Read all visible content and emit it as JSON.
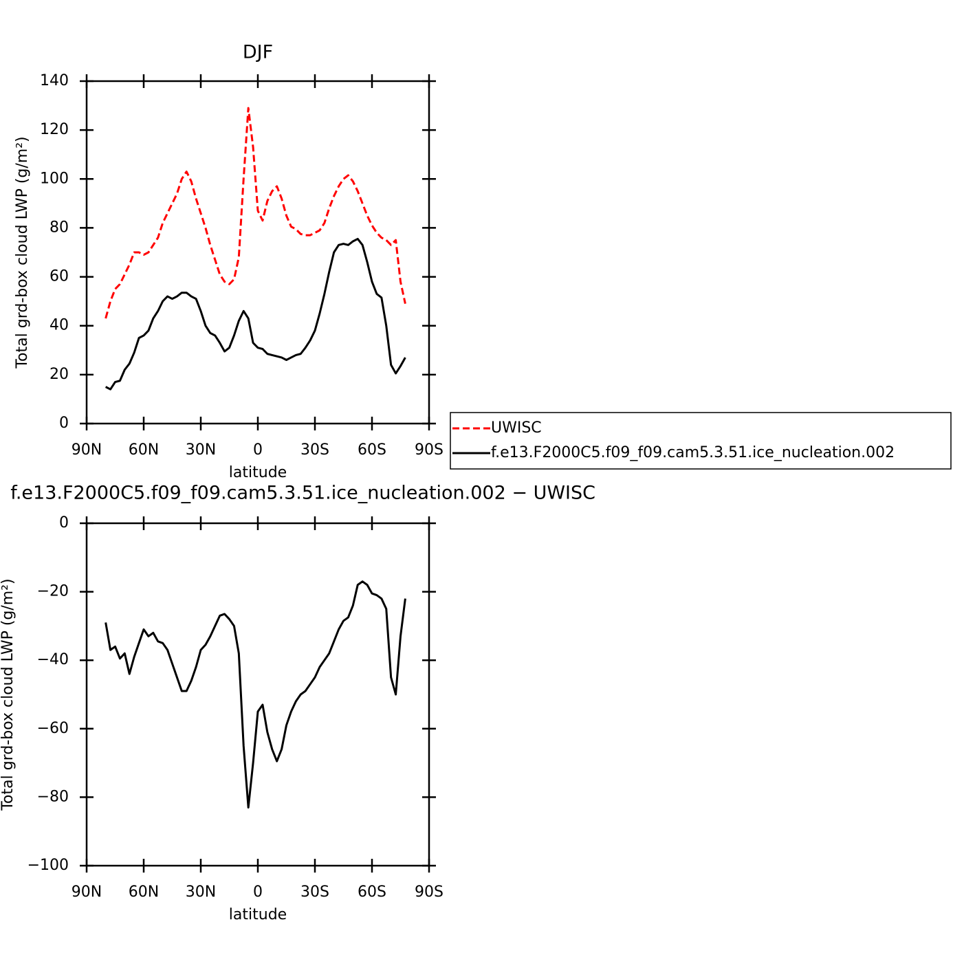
{
  "chart_data": [
    {
      "type": "line",
      "title": "DJF",
      "xlabel": "latitude",
      "ylabel": "Total grd-box cloud LWP (g/m²)",
      "x": [
        80,
        77.5,
        75,
        72.5,
        70,
        67.5,
        65,
        62.5,
        60,
        57.5,
        55,
        52.5,
        50,
        47.5,
        45,
        42.5,
        40,
        37.5,
        35,
        32.5,
        30,
        27.5,
        25,
        22.5,
        20,
        17.5,
        15,
        12.5,
        10,
        7.5,
        5,
        2.5,
        0,
        -2.5,
        -5,
        -7.5,
        -10,
        -12.5,
        -15,
        -17.5,
        -20,
        -22.5,
        -25,
        -27.5,
        -30,
        -32.5,
        -35,
        -37.5,
        -40,
        -42.5,
        -45,
        -47.5,
        -50,
        -52.5,
        -55,
        -57.5,
        -60,
        -62.5,
        -65,
        -67.5,
        -70,
        -72.5,
        -75,
        -77.5
      ],
      "xlim": [
        90,
        -90
      ],
      "xticks": [
        {
          "value": 90,
          "label": "90N"
        },
        {
          "value": 60,
          "label": "60N"
        },
        {
          "value": 30,
          "label": "30N"
        },
        0,
        {
          "value": -30,
          "label": "30S"
        },
        {
          "value": -60,
          "label": "60S"
        },
        {
          "value": -90,
          "label": "90S"
        }
      ],
      "ylim": [
        0,
        140
      ],
      "yticks": [
        0,
        20,
        40,
        60,
        80,
        100,
        120,
        140
      ],
      "legend": "right",
      "series": [
        {
          "name": "UWISC",
          "color": "#ff0000",
          "dash": "dashed",
          "values": [
            43,
            50,
            55,
            57,
            61,
            65,
            70,
            70,
            69,
            70,
            73,
            76,
            82,
            86,
            90,
            94,
            100,
            103,
            99,
            92,
            86,
            80,
            73,
            67,
            61,
            58,
            57,
            59,
            68,
            100,
            129,
            113,
            87,
            83,
            91,
            95,
            97,
            92,
            85,
            80.5,
            79.5,
            77.5,
            77,
            77,
            78,
            79,
            82,
            88,
            93,
            97,
            100,
            101.5,
            99,
            95,
            90,
            85,
            81,
            78,
            76,
            75,
            73,
            75,
            58,
            49
          ]
        },
        {
          "name": "f.e13.F2000C5.f09_f09.cam5.3.51.ice_nucleation.002",
          "color": "#000000",
          "dash": "solid",
          "values": [
            15,
            14,
            17,
            17.5,
            22,
            24.5,
            29,
            35,
            36,
            38,
            43,
            46,
            50,
            52,
            51,
            52,
            53.5,
            53.5,
            52,
            51,
            46,
            40,
            37,
            36,
            33,
            29.5,
            31,
            36,
            42,
            46,
            43,
            33,
            31,
            30.5,
            28.5,
            28,
            27.5,
            27,
            26,
            27,
            28,
            28.5,
            31,
            34,
            38,
            45,
            53,
            62,
            70,
            73,
            73.5,
            73,
            74.5,
            75.5,
            73,
            66,
            58,
            53,
            51.5,
            40,
            24,
            20.5,
            23.5,
            27
          ]
        }
      ]
    },
    {
      "type": "line",
      "title": "f.e13.F2000C5.f09_f09.cam5.3.51.ice_nucleation.002 − UWISC",
      "xlabel": "latitude",
      "ylabel": "Total grd-box cloud LWP (g/m²)",
      "x": [
        80,
        77.5,
        75,
        72.5,
        70,
        67.5,
        65,
        62.5,
        60,
        57.5,
        55,
        52.5,
        50,
        47.5,
        45,
        42.5,
        40,
        37.5,
        35,
        32.5,
        30,
        27.5,
        25,
        22.5,
        20,
        17.5,
        15,
        12.5,
        10,
        7.5,
        5,
        2.5,
        0,
        -2.5,
        -5,
        -7.5,
        -10,
        -12.5,
        -15,
        -17.5,
        -20,
        -22.5,
        -25,
        -27.5,
        -30,
        -32.5,
        -35,
        -37.5,
        -40,
        -42.5,
        -45,
        -47.5,
        -50,
        -52.5,
        -55,
        -57.5,
        -60,
        -62.5,
        -65,
        -67.5,
        -70,
        -72.5,
        -75,
        -77.5
      ],
      "xlim": [
        90,
        -90
      ],
      "xticks": [
        {
          "value": 90,
          "label": "90N"
        },
        {
          "value": 60,
          "label": "60N"
        },
        {
          "value": 30,
          "label": "30N"
        },
        0,
        {
          "value": -30,
          "label": "30S"
        },
        {
          "value": -60,
          "label": "60S"
        },
        {
          "value": -90,
          "label": "90S"
        }
      ],
      "ylim": [
        -100,
        0
      ],
      "yticks": [
        {
          "value": -100,
          "label": "−100"
        },
        {
          "value": -80,
          "label": "−80"
        },
        {
          "value": -60,
          "label": "−60"
        },
        {
          "value": -40,
          "label": "−40"
        },
        {
          "value": -20,
          "label": "−20"
        },
        0
      ],
      "series": [
        {
          "color": "#000000",
          "dash": "solid",
          "values": [
            -29,
            -37,
            -36,
            -39.5,
            -38,
            -44,
            -39,
            -35,
            -31,
            -33,
            -32,
            -34.5,
            -35,
            -37,
            -41,
            -45,
            -49,
            -49,
            -46,
            -42,
            -37,
            -35.5,
            -33,
            -30,
            -27,
            -26.5,
            -28,
            -30,
            -38,
            -65,
            -83,
            -70,
            -55,
            -53,
            -61,
            -66,
            -69.5,
            -66,
            -59,
            -55,
            -52,
            -50,
            -49,
            -47,
            -45,
            -42,
            -40,
            -38,
            -34.5,
            -31,
            -28.5,
            -27.5,
            -24,
            -18,
            -17,
            -18,
            -20.5,
            -21,
            -22,
            -25,
            -45,
            -50,
            -33,
            -22
          ]
        }
      ]
    }
  ]
}
